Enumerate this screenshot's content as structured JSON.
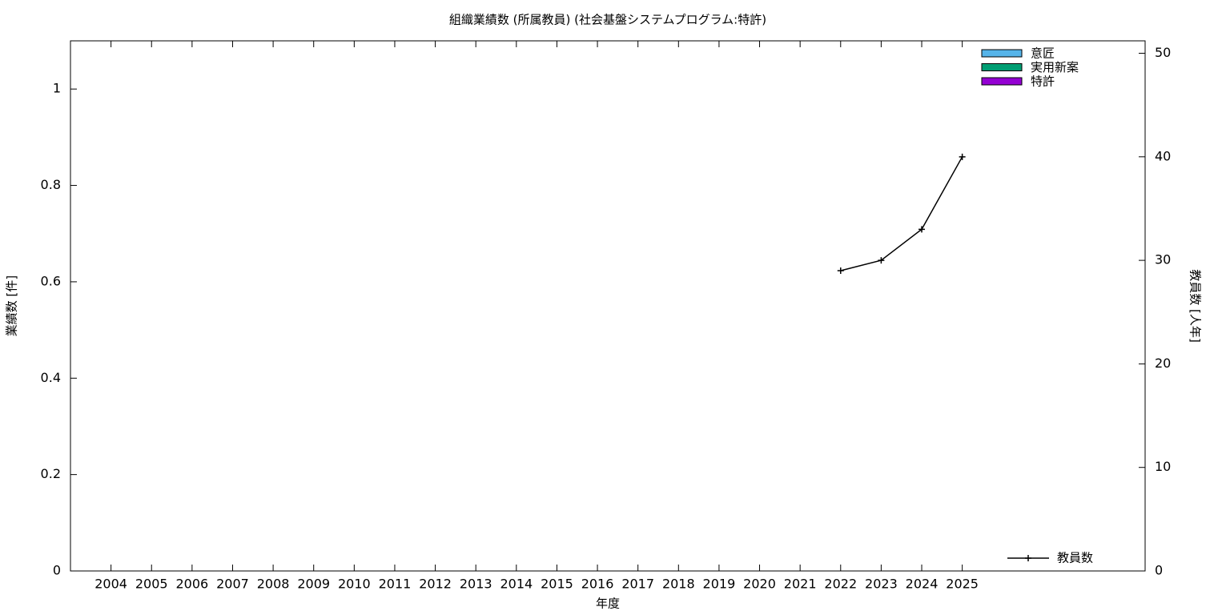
{
  "chart_data": {
    "type": "bar-line",
    "title": "組織業績数 (所属教員) (社会基盤システムプログラム:特許)",
    "x_label": "年度",
    "y_label": "業績数 [件]",
    "y2_label": "教員数 [人年]",
    "categories": [
      "2004",
      "2005",
      "2006",
      "2007",
      "2008",
      "2009",
      "2010",
      "2011",
      "2012",
      "2013",
      "2014",
      "2015",
      "2016",
      "2017",
      "2018",
      "2019",
      "2020",
      "2021",
      "2022",
      "2023",
      "2024",
      "2025"
    ],
    "ylim": [
      0,
      1.1
    ],
    "yticks": [
      0,
      0.2,
      0.4,
      0.6,
      0.8,
      1
    ],
    "y2lim": [
      0,
      51.2
    ],
    "y2ticks": [
      0,
      10,
      20,
      30,
      40,
      50
    ],
    "series": [
      {
        "name": "意匠",
        "color": "#56b4e9",
        "values": [
          0,
          0,
          0,
          0,
          0,
          0,
          0,
          0,
          0,
          0,
          0,
          0,
          0,
          0,
          0,
          0,
          0,
          0,
          0,
          0,
          0,
          0
        ]
      },
      {
        "name": "実用新案",
        "color": "#009e73",
        "values": [
          0,
          0,
          0,
          0,
          0,
          0,
          0,
          0,
          0,
          0,
          0,
          0,
          0,
          0,
          0,
          0,
          0,
          0,
          0,
          0,
          0,
          0
        ]
      },
      {
        "name": "特許",
        "color": "#9400d3",
        "values": [
          0,
          0,
          0,
          0,
          0,
          0,
          0,
          0,
          0,
          0,
          0,
          0,
          0,
          0,
          0,
          0,
          0,
          0,
          0,
          0,
          0,
          0
        ]
      },
      {
        "name": "教員数",
        "color": "#000000",
        "axis": "y2",
        "values": [
          null,
          null,
          null,
          null,
          null,
          null,
          null,
          null,
          null,
          null,
          null,
          null,
          null,
          null,
          null,
          null,
          null,
          null,
          29,
          30,
          33,
          40
        ]
      }
    ]
  }
}
